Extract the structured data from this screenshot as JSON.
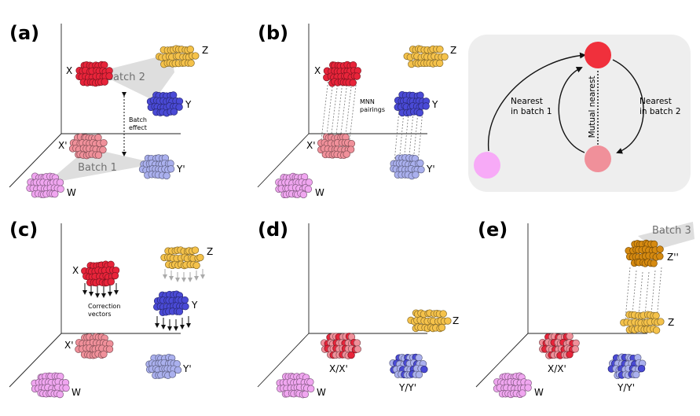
{
  "panels": {
    "a": {
      "label": "(a)",
      "clusters": {
        "x": "X",
        "y": "Y",
        "z": "Z",
        "x_prime": "X'",
        "y_prime": "Y'",
        "w": "W"
      },
      "batch_top": "Batch 2",
      "batch_bottom": "Batch 1",
      "batch_effect_1": "Batch",
      "batch_effect_2": "effect"
    },
    "b": {
      "label": "(b)",
      "clusters": {
        "x": "X",
        "y": "Y",
        "z": "Z",
        "x_prime": "X'",
        "y_prime": "Y'",
        "w": "W"
      },
      "mnn_1": "MNN",
      "mnn_2": "pairings"
    },
    "c": {
      "label": "(c)",
      "clusters": {
        "x": "X",
        "y": "Y",
        "z": "Z",
        "x_prime": "X'",
        "y_prime": "Y'",
        "w": "W"
      },
      "correction_1": "Correction",
      "correction_2": "vectors"
    },
    "d": {
      "label": "(d)",
      "clusters": {
        "xx": "X/X'",
        "yy": "Y/Y'",
        "z": "Z",
        "w": "W"
      }
    },
    "e": {
      "label": "(e)",
      "clusters": {
        "xx": "X/X'",
        "yy": "Y/Y'",
        "z": "Z",
        "z2": "Z''",
        "w": "W"
      },
      "batch3": "Batch 3"
    }
  },
  "graph": {
    "left_1": "Nearest",
    "left_2": "in batch 1",
    "right_1": "Nearest",
    "right_2": "in batch 2",
    "center": "Mutual nearest"
  },
  "colors": {
    "red": "#e8243a",
    "red_light": "#f0909a",
    "blue": "#4a4ad6",
    "blue_light": "#aab0ee",
    "orange": "#f5c24a",
    "orange_dark": "#d68a10",
    "pink": "#f0a6f0",
    "graph_bg": "#eeeeee"
  }
}
